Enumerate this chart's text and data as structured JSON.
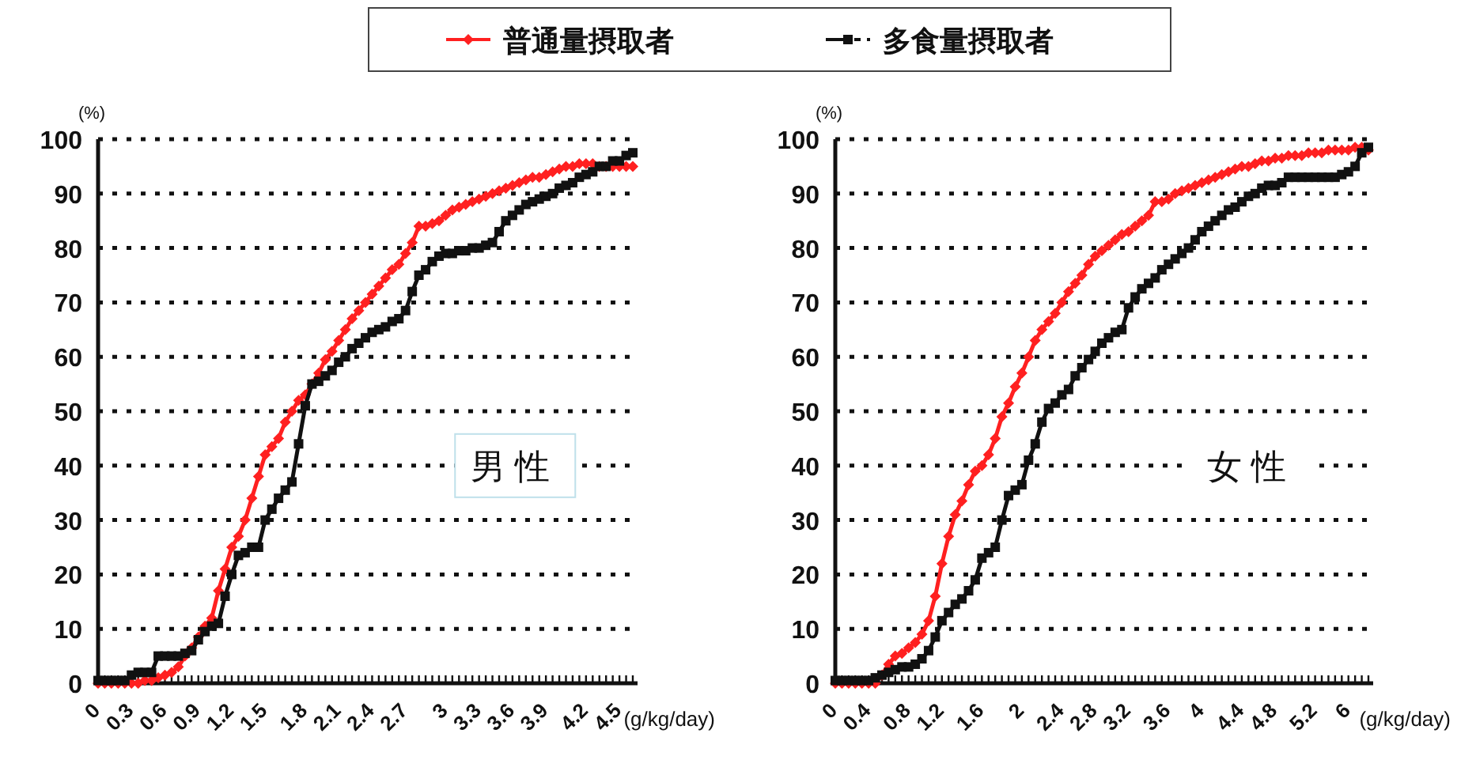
{
  "chart_data": [
    {
      "type": "line",
      "ylabel": "(%)",
      "xlabel": "(g/kg/day)",
      "annotations": [
        "男性"
      ],
      "legend": "top",
      "grid": "y",
      "line_style": "solid",
      "ylim": [
        0,
        100
      ],
      "yticks": [
        0,
        10,
        20,
        30,
        40,
        50,
        60,
        70,
        80,
        90,
        100
      ],
      "categories": [
        "0",
        null,
        null,
        null,
        null,
        "0.3",
        null,
        null,
        null,
        null,
        "0.6",
        null,
        null,
        null,
        null,
        "0.9",
        null,
        null,
        null,
        null,
        "1.2",
        null,
        null,
        null,
        null,
        "1.5",
        null,
        null,
        null,
        null,
        null,
        "1.8",
        null,
        null,
        null,
        null,
        "2.1",
        null,
        null,
        null,
        null,
        "2.4",
        null,
        null,
        null,
        null,
        "2.7",
        null,
        null,
        null,
        null,
        null,
        "3",
        null,
        null,
        null,
        null,
        "3.3",
        null,
        null,
        null,
        null,
        "3.6",
        null,
        null,
        null,
        null,
        "3.9",
        null,
        null,
        null,
        null,
        null,
        "4.2",
        null,
        null,
        null,
        null,
        "4.5",
        null,
        null
      ],
      "series": [
        {
          "name": "普通量摂取者",
          "color": "#ff2020",
          "marker": "diamond",
          "values": [
            0,
            0,
            0,
            0,
            0,
            0,
            0,
            0.5,
            0.5,
            1,
            1.5,
            2,
            3,
            5,
            6.5,
            8.5,
            10.5,
            12,
            17,
            21,
            25,
            27,
            30,
            34,
            38,
            42,
            43.5,
            45,
            48,
            50,
            52,
            53,
            55,
            57,
            59.5,
            61,
            63,
            65,
            67,
            68.5,
            70,
            71.5,
            73,
            74.5,
            76,
            77,
            79,
            81,
            84,
            84,
            84.5,
            85,
            86,
            87,
            87.5,
            88,
            88.5,
            89,
            89.5,
            90,
            90.5,
            91,
            91.5,
            92,
            92.5,
            93,
            93,
            93.5,
            94,
            94.5,
            95,
            95,
            95.5,
            95.5,
            95.5,
            95,
            95,
            95,
            95,
            95,
            95
          ]
        },
        {
          "name": "多食量摂取者",
          "color": "#111111",
          "marker": "square",
          "values": [
            0.5,
            0.5,
            0.5,
            0.5,
            0.5,
            1.5,
            2,
            2,
            2,
            5,
            5,
            5,
            5,
            5.5,
            6,
            8,
            9.5,
            10.5,
            11,
            16,
            20,
            23.5,
            24,
            25,
            25,
            30,
            32,
            34,
            35.5,
            37,
            44,
            51,
            55,
            55.5,
            56.5,
            57.5,
            59,
            60,
            61.5,
            62.5,
            63.5,
            64.5,
            65,
            65.5,
            66.5,
            67,
            68.5,
            72,
            75,
            76,
            77.5,
            78.5,
            79,
            79,
            79.5,
            79.5,
            80,
            80,
            80.5,
            81,
            83,
            85,
            86,
            87,
            88,
            88.5,
            89,
            89.5,
            90,
            91,
            91.5,
            92,
            93,
            93.5,
            94,
            95,
            95,
            96,
            96,
            97,
            97.5
          ]
        }
      ]
    },
    {
      "type": "line",
      "ylabel": "(%)",
      "xlabel": "(g/kg/day)",
      "annotations": [
        "女性"
      ],
      "grid": "y",
      "line_style": "solid",
      "ylim": [
        0,
        100
      ],
      "yticks": [
        0,
        10,
        20,
        30,
        40,
        50,
        60,
        70,
        80,
        90,
        100
      ],
      "categories": [
        "0",
        null,
        null,
        null,
        null,
        "0.4",
        null,
        null,
        null,
        null,
        null,
        "0.8",
        null,
        null,
        null,
        null,
        "1.2",
        null,
        null,
        null,
        null,
        null,
        "1.6",
        null,
        null,
        null,
        null,
        null,
        "2",
        null,
        null,
        null,
        null,
        null,
        "2.4",
        null,
        null,
        null,
        null,
        "2.8",
        null,
        null,
        null,
        null,
        "3.2",
        null,
        null,
        null,
        null,
        null,
        "3.6",
        null,
        null,
        null,
        null,
        "4",
        null,
        null,
        null,
        null,
        null,
        "4.4",
        null,
        null,
        null,
        null,
        "4.8",
        null,
        null,
        null,
        null,
        null,
        "5.2",
        null,
        null,
        null,
        null,
        "6",
        null,
        null,
        null
      ],
      "series": [
        {
          "color": "#ff2020",
          "marker": "diamond",
          "values": [
            0,
            0,
            0,
            0,
            0,
            0,
            0,
            1.5,
            3.5,
            5,
            5.5,
            6.5,
            7.5,
            9,
            11.5,
            16,
            22,
            27,
            31,
            33.5,
            36.5,
            39,
            40,
            42,
            45,
            49,
            51.5,
            54.5,
            57,
            60,
            63,
            65,
            66.5,
            68,
            70,
            72,
            73.5,
            75,
            77,
            78.5,
            79.5,
            80.5,
            81.5,
            82.5,
            83,
            84,
            85,
            86,
            88.5,
            88.5,
            89,
            90,
            90.5,
            91,
            91.5,
            92,
            92.5,
            93,
            93.5,
            94,
            94.5,
            95,
            95,
            95.5,
            96,
            96,
            96.5,
            96.5,
            97,
            97,
            97,
            97.5,
            97.5,
            97.5,
            98,
            98,
            98,
            98,
            98.5,
            98.5,
            98
          ]
        },
        {
          "color": "#111111",
          "marker": "square",
          "values": [
            0.5,
            0.5,
            0.5,
            0.5,
            0.5,
            0.5,
            1,
            1.5,
            2,
            2.5,
            3,
            3,
            3.5,
            4.5,
            6,
            8.5,
            11.5,
            13,
            14.5,
            15.5,
            17,
            19,
            23,
            24,
            25,
            30,
            34.5,
            35.5,
            36.5,
            41,
            44,
            48,
            50.5,
            51.5,
            53,
            54,
            56.5,
            58,
            59.5,
            61,
            62.5,
            63.5,
            64.5,
            65,
            69,
            71,
            72.5,
            73.5,
            74.5,
            76,
            77,
            78,
            79,
            80,
            81.5,
            83,
            84,
            85,
            86,
            87,
            87.5,
            88.5,
            89.5,
            90,
            91,
            91.5,
            91.5,
            92,
            93,
            93,
            93,
            93,
            93,
            93,
            93,
            93,
            93.5,
            94,
            95,
            97.5,
            98.5
          ]
        }
      ]
    }
  ]
}
